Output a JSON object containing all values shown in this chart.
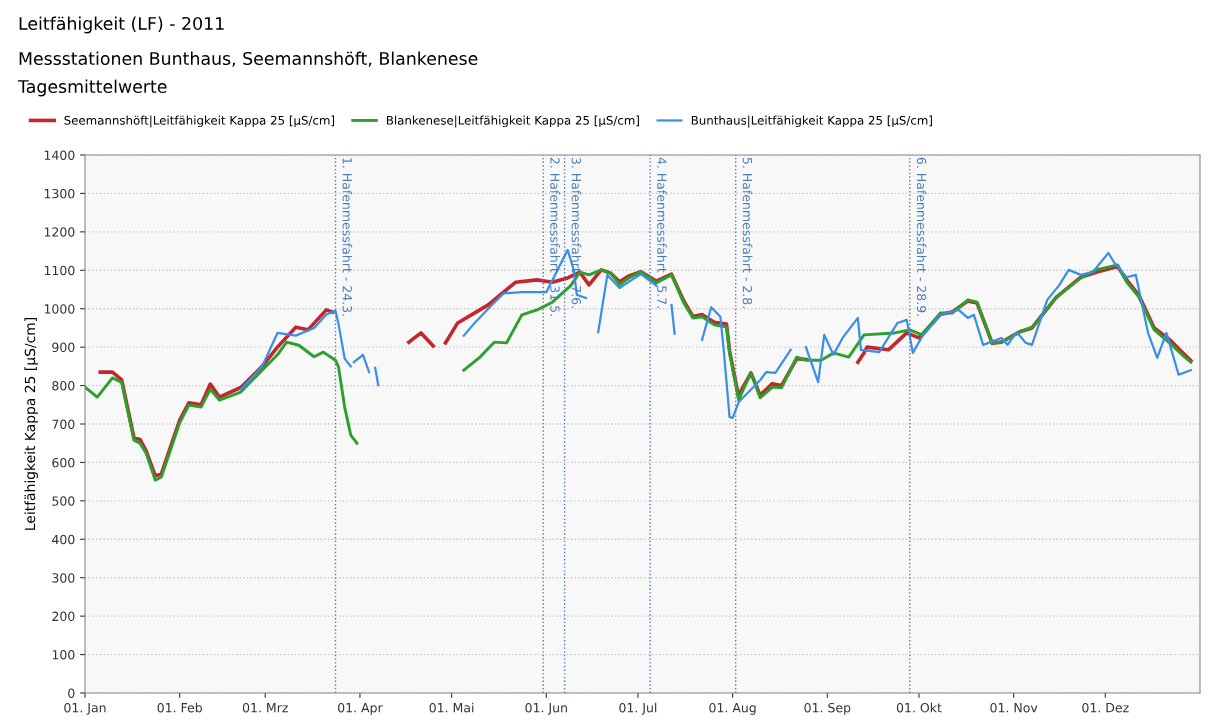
{
  "chart_data": {
    "type": "line",
    "title": "Leitfähigkeit (LF) - 2011",
    "subtitle": "Messstationen Bunthaus, Seemannshöft, Blankenese\nTagesmittelwerte",
    "ylabel": "Leitfähigkeit Kappa 25 [µS/cm]",
    "xlim": [
      "2011-01-01",
      "2012-01-01"
    ],
    "xticks": [
      {
        "value": "2011-01-01",
        "label": "01. Jan"
      },
      {
        "value": "2011-02-01",
        "label": "01. Feb"
      },
      {
        "value": "2011-03-01",
        "label": "01. Mrz"
      },
      {
        "value": "2011-04-01",
        "label": "01. Apr"
      },
      {
        "value": "2011-05-01",
        "label": "01. Mai"
      },
      {
        "value": "2011-06-01",
        "label": "01. Jun"
      },
      {
        "value": "2011-07-01",
        "label": "01. Jul"
      },
      {
        "value": "2011-08-01",
        "label": "01. Aug"
      },
      {
        "value": "2011-09-01",
        "label": "01. Sep"
      },
      {
        "value": "2011-10-01",
        "label": "01. Okt"
      },
      {
        "value": "2011-11-01",
        "label": "01. Nov"
      },
      {
        "value": "2011-12-01",
        "label": "01. Dez"
      }
    ],
    "ylim": [
      0,
      1400
    ],
    "yticks": [
      0,
      100,
      200,
      300,
      400,
      500,
      600,
      700,
      800,
      900,
      1000,
      1100,
      1200,
      1300,
      1400
    ],
    "grid": "y",
    "legend": "top left",
    "line_style": "solid",
    "marker": "none",
    "ref_lines": [
      {
        "axis": "x",
        "value": "2011-03-24",
        "label": "1. Hafenmessfahrt - 24.3.",
        "color": "#4a7ebb",
        "line_style": "dotted"
      },
      {
        "axis": "x",
        "value": "2011-05-31",
        "label": "2. Hafenmessfahrt - 31.5.",
        "color": "#4a7ebb",
        "line_style": "dotted"
      },
      {
        "axis": "x",
        "value": "2011-06-07",
        "label": "3. Hafenmessfahrt - 7.6.",
        "color": "#4a7ebb",
        "line_style": "dotted"
      },
      {
        "axis": "x",
        "value": "2011-07-05",
        "label": "4. Hafenmessfahrt - 5.7.",
        "color": "#4a7ebb",
        "line_style": "dotted"
      },
      {
        "axis": "x",
        "value": "2011-08-02",
        "label": "5. Hafenmessfahrt - 2.8.",
        "color": "#4a7ebb",
        "line_style": "dotted"
      },
      {
        "axis": "x",
        "value": "2011-09-28",
        "label": "6. Hafenmessfahrt - 28.9.",
        "color": "#4a7ebb",
        "line_style": "dotted"
      }
    ],
    "series": [
      {
        "name": "Seemannshöft|Leitfähigkeit Kappa 25 [µS/cm]",
        "color": "#c0282d",
        "x": [
          "2011-01-06",
          "2011-01-10",
          "2011-01-13",
          "2011-01-17",
          "2011-01-19",
          "2011-01-21",
          "2011-01-24",
          "2011-01-26",
          "2011-02-01",
          "2011-02-04",
          "2011-02-08",
          "2011-02-11",
          "2011-02-14",
          "2011-02-21",
          "2011-02-28",
          "2011-03-05",
          "2011-03-11",
          "2011-03-15",
          "2011-03-21",
          "2011-03-23",
          "2011-04-05",
          "2011-04-17",
          "2011-04-21",
          "2011-04-25",
          "2011-04-27",
          "2011-04-29",
          "2011-05-03",
          "2011-05-09",
          "2011-05-13",
          "2011-05-18",
          "2011-05-22",
          "2011-05-29",
          "2011-06-03",
          "2011-06-08",
          "2011-06-12",
          "2011-06-15",
          "2011-06-19",
          "2011-06-22",
          "2011-06-25",
          "2011-06-28",
          "2011-07-02",
          "2011-07-07",
          "2011-07-12",
          "2011-07-16",
          "2011-07-19",
          "2011-07-22",
          "2011-07-26",
          "2011-07-30",
          "2011-07-31",
          "2011-08-03",
          "2011-08-04",
          "2011-08-07",
          "2011-08-10",
          "2011-08-14",
          "2011-08-17",
          "2011-08-22",
          "2011-08-25",
          "2011-09-04",
          "2011-09-11",
          "2011-09-13",
          "2011-09-14",
          "2011-09-21",
          "2011-09-27",
          "2011-10-01",
          "2011-10-08",
          "2011-10-12",
          "2011-10-17",
          "2011-10-20",
          "2011-10-25",
          "2011-10-28",
          "2011-11-03",
          "2011-11-07",
          "2011-11-15",
          "2011-11-23",
          "2011-11-28",
          "2011-12-05",
          "2011-12-08",
          "2011-12-12",
          "2011-12-17",
          "2011-12-22",
          "2011-12-27",
          "2011-12-29"
        ],
        "values": [
          835,
          835,
          815,
          665,
          660,
          630,
          565,
          570,
          710,
          755,
          750,
          804,
          770,
          795,
          850,
          900,
          952,
          945,
          997,
          991,
          null,
          913,
          937,
          903,
          null,
          911,
          963,
          991,
          1010,
          1043,
          1069,
          1075,
          1069,
          1080,
          1095,
          1062,
          1101,
          1093,
          1070,
          1085,
          1096,
          1072,
          1090,
          1020,
          980,
          985,
          965,
          960,
          890,
          770,
          790,
          833,
          775,
          805,
          800,
          870,
          868,
          null,
          861,
          885,
          900,
          893,
          937,
          924,
          985,
          992,
          1020,
          1015,
          910,
          913,
          940,
          950,
          1030,
          1082,
          1095,
          1110,
          1075,
          1035,
          950,
          920,
          880,
          865
        ]
      },
      {
        "name": "Blankenese|Leitfähigkeit Kappa 25 [µS/cm]",
        "color": "#2ca02c",
        "x": [
          "2011-01-01",
          "2011-01-05",
          "2011-01-10",
          "2011-01-13",
          "2011-01-17",
          "2011-01-19",
          "2011-01-21",
          "2011-01-24",
          "2011-01-26",
          "2011-02-01",
          "2011-02-04",
          "2011-02-08",
          "2011-02-11",
          "2011-02-14",
          "2011-02-21",
          "2011-02-28",
          "2011-03-05",
          "2011-03-08",
          "2011-03-12",
          "2011-03-17",
          "2011-03-20",
          "2011-03-24",
          "2011-03-25",
          "2011-03-27",
          "2011-03-29",
          "2011-03-31",
          "2011-04-15",
          "2011-05-05",
          "2011-05-10",
          "2011-05-15",
          "2011-05-19",
          "2011-05-24",
          "2011-05-29",
          "2011-06-03",
          "2011-06-09",
          "2011-06-12",
          "2011-06-15",
          "2011-06-19",
          "2011-06-22",
          "2011-06-25",
          "2011-06-28",
          "2011-07-02",
          "2011-07-07",
          "2011-07-12",
          "2011-07-16",
          "2011-07-19",
          "2011-07-22",
          "2011-07-26",
          "2011-07-30",
          "2011-07-31",
          "2011-08-03",
          "2011-08-04",
          "2011-08-07",
          "2011-08-10",
          "2011-08-14",
          "2011-08-17",
          "2011-08-22",
          "2011-08-25",
          "2011-08-30",
          "2011-09-03",
          "2011-09-08",
          "2011-09-13",
          "2011-09-23",
          "2011-09-28",
          "2011-10-02",
          "2011-10-08",
          "2011-10-12",
          "2011-10-17",
          "2011-10-20",
          "2011-10-25",
          "2011-10-28",
          "2011-11-03",
          "2011-11-07",
          "2011-11-15",
          "2011-11-23",
          "2011-11-28",
          "2011-12-05",
          "2011-12-08",
          "2011-12-12",
          "2011-12-17",
          "2011-12-22",
          "2011-12-27",
          "2011-12-29"
        ],
        "values": [
          796,
          770,
          820,
          808,
          658,
          650,
          624,
          554,
          562,
          703,
          749,
          744,
          790,
          762,
          783,
          840,
          880,
          913,
          905,
          875,
          887,
          866,
          848,
          744,
          671,
          650,
          null,
          840,
          872,
          913,
          911,
          984,
          997,
          1017,
          1060,
          1095,
          1088,
          1101,
          1093,
          1062,
          1080,
          1096,
          1067,
          1088,
          1015,
          976,
          979,
          958,
          952,
          885,
          762,
          781,
          833,
          768,
          796,
          794,
          874,
          866,
          866,
          885,
          874,
          932,
          937,
          945,
          932,
          989,
          989,
          1023,
          1017,
          911,
          913,
          939,
          952,
          1030,
          1080,
          1101,
          1114,
          1069,
          1030,
          945,
          911,
          874,
          861
        ]
      },
      {
        "name": "Bunthaus|Leitfähigkeit Kappa 25 [µS/cm]",
        "color": "#3a8ee6",
        "x": [
          "2011-02-21",
          "2011-02-28",
          "2011-03-05",
          "2011-03-11",
          "2011-03-17",
          "2011-03-21",
          "2011-03-24",
          "2011-03-25",
          "2011-03-27",
          "2011-03-29",
          "2011-03-29T12:00",
          "2011-03-30",
          "2011-04-02",
          "2011-04-04",
          "2011-04-05",
          "2011-04-06",
          "2011-04-07",
          "2011-04-20",
          "2011-05-05",
          "2011-05-08",
          "2011-05-13",
          "2011-05-18",
          "2011-05-24",
          "2011-06-01",
          "2011-06-08",
          "2011-06-10",
          "2011-06-11",
          "2011-06-14",
          "2011-06-16",
          "2011-06-18",
          "2011-06-21",
          "2011-06-25",
          "2011-06-28",
          "2011-07-02",
          "2011-07-07",
          "2011-07-10",
          "2011-07-12",
          "2011-07-13",
          "2011-07-17",
          "2011-07-22",
          "2011-07-25",
          "2011-07-28",
          "2011-07-29",
          "2011-07-31",
          "2011-08-01",
          "2011-08-03",
          "2011-08-10",
          "2011-08-12",
          "2011-08-15",
          "2011-08-20",
          "2011-08-23",
          "2011-08-25",
          "2011-08-29",
          "2011-08-31",
          "2011-09-03",
          "2011-09-06",
          "2011-09-11",
          "2011-09-12",
          "2011-09-18",
          "2011-09-24",
          "2011-09-27",
          "2011-09-29",
          "2011-10-02",
          "2011-10-08",
          "2011-10-14",
          "2011-10-17",
          "2011-10-19",
          "2011-10-22",
          "2011-10-28",
          "2011-10-30",
          "2011-11-02",
          "2011-11-05",
          "2011-11-07",
          "2011-11-12",
          "2011-11-16",
          "2011-11-19",
          "2011-11-23",
          "2011-11-27",
          "2011-12-02",
          "2011-12-04",
          "2011-12-08",
          "2011-12-11",
          "2011-12-15",
          "2011-12-18",
          "2011-12-21",
          "2011-12-25",
          "2011-12-29"
        ],
        "values": [
          790,
          850,
          937,
          930,
          950,
          985,
          995,
          960,
          870,
          850,
          null,
          861,
          880,
          835,
          null,
          846,
          801,
          null,
          930,
          958,
          1000,
          1040,
          1043,
          1043,
          1153,
          1101,
          1036,
          1028,
          null,
          939,
          1088,
          1054,
          1070,
          1090,
          1060,
          null,
          1010,
          935,
          null,
          919,
          1004,
          979,
          900,
          718,
          716,
          757,
          814,
          835,
          833,
          893,
          null,
          900,
          809,
          932,
          880,
          924,
          976,
          893,
          887,
          963,
          971,
          885,
          927,
          984,
          997,
          976,
          984,
          906,
          924,
          906,
          939,
          911,
          906,
          1023,
          1062,
          1101,
          1088,
          1096,
          1145,
          1119,
          1082,
          1088,
          937,
          872,
          937,
          828,
          840
        ]
      }
    ]
  }
}
